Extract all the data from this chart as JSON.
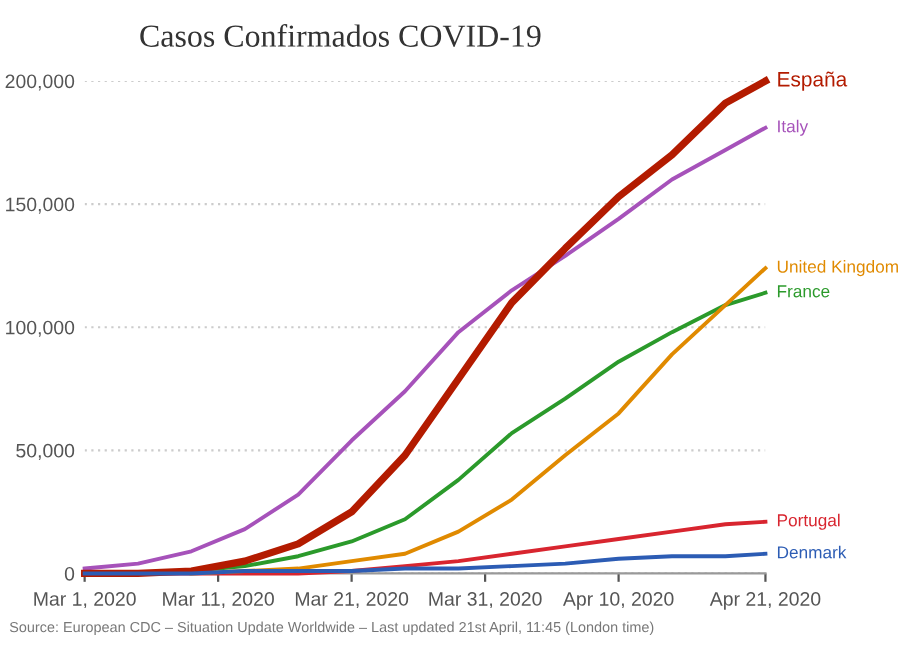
{
  "chart_data": {
    "type": "line",
    "title": "Casos Confirmados COVID-19",
    "x": [
      "2020-03-01",
      "2020-03-05",
      "2020-03-09",
      "2020-03-13",
      "2020-03-17",
      "2020-03-21",
      "2020-03-25",
      "2020-03-29",
      "2020-04-02",
      "2020-04-06",
      "2020-04-10",
      "2020-04-14",
      "2020-04-18",
      "2020-04-21"
    ],
    "series": [
      {
        "name": "España",
        "color": "#b31b00",
        "values": [
          0,
          0,
          1000,
          5000,
          12000,
          25000,
          48000,
          79000,
          110000,
          132000,
          153000,
          170000,
          191000,
          200000
        ]
      },
      {
        "name": "Italy",
        "color": "#a652ba",
        "values": [
          2000,
          4000,
          9000,
          18000,
          32000,
          54000,
          74000,
          98000,
          115000,
          129000,
          144000,
          160000,
          172000,
          181000
        ]
      },
      {
        "name": "United Kingdom",
        "color": "#e08a00",
        "values": [
          null,
          null,
          0,
          1000,
          2000,
          5000,
          8000,
          17000,
          30000,
          48000,
          65000,
          89000,
          109000,
          124000
        ]
      },
      {
        "name": "France",
        "color": "#2b9a2b",
        "values": [
          0,
          0,
          1000,
          3000,
          7000,
          13000,
          22000,
          38000,
          57000,
          71000,
          86000,
          98000,
          109000,
          114000
        ]
      },
      {
        "name": "Portugal",
        "color": "#d8252f",
        "values": [
          0,
          0,
          0,
          0,
          0,
          1000,
          3000,
          5000,
          8000,
          11000,
          14000,
          17000,
          20000,
          21000
        ]
      },
      {
        "name": "Denmark",
        "color": "#2c5cb4",
        "values": [
          0,
          0,
          0,
          1000,
          1000,
          1000,
          2000,
          2000,
          3000,
          4000,
          6000,
          7000,
          7000,
          8000
        ]
      }
    ],
    "ylim": [
      0,
      200000
    ],
    "yticks": [
      {
        "value": 0,
        "label": "0"
      },
      {
        "value": 50000,
        "label": "50,000"
      },
      {
        "value": 100000,
        "label": "100,000"
      },
      {
        "value": 150000,
        "label": "150,000"
      },
      {
        "value": 200000,
        "label": "200,000"
      }
    ],
    "xlim": [
      "2020-03-01",
      "2020-04-21"
    ],
    "xticks": [
      {
        "value": "2020-03-01",
        "label": "Mar 1, 2020"
      },
      {
        "value": "2020-03-11",
        "label": "Mar 11, 2020"
      },
      {
        "value": "2020-03-21",
        "label": "Mar 21, 2020"
      },
      {
        "value": "2020-03-31",
        "label": "Mar 31, 2020"
      },
      {
        "value": "2020-04-10",
        "label": "Apr 10, 2020"
      },
      {
        "value": "2020-04-21",
        "label": "Apr 21, 2020"
      }
    ],
    "grid": "y",
    "legend": false,
    "marker": "none",
    "line_style": "solid",
    "annotations": [
      "Source: European CDC – Situation Update Worldwide – Last updated 21st April, 11:45 (London time)"
    ]
  }
}
